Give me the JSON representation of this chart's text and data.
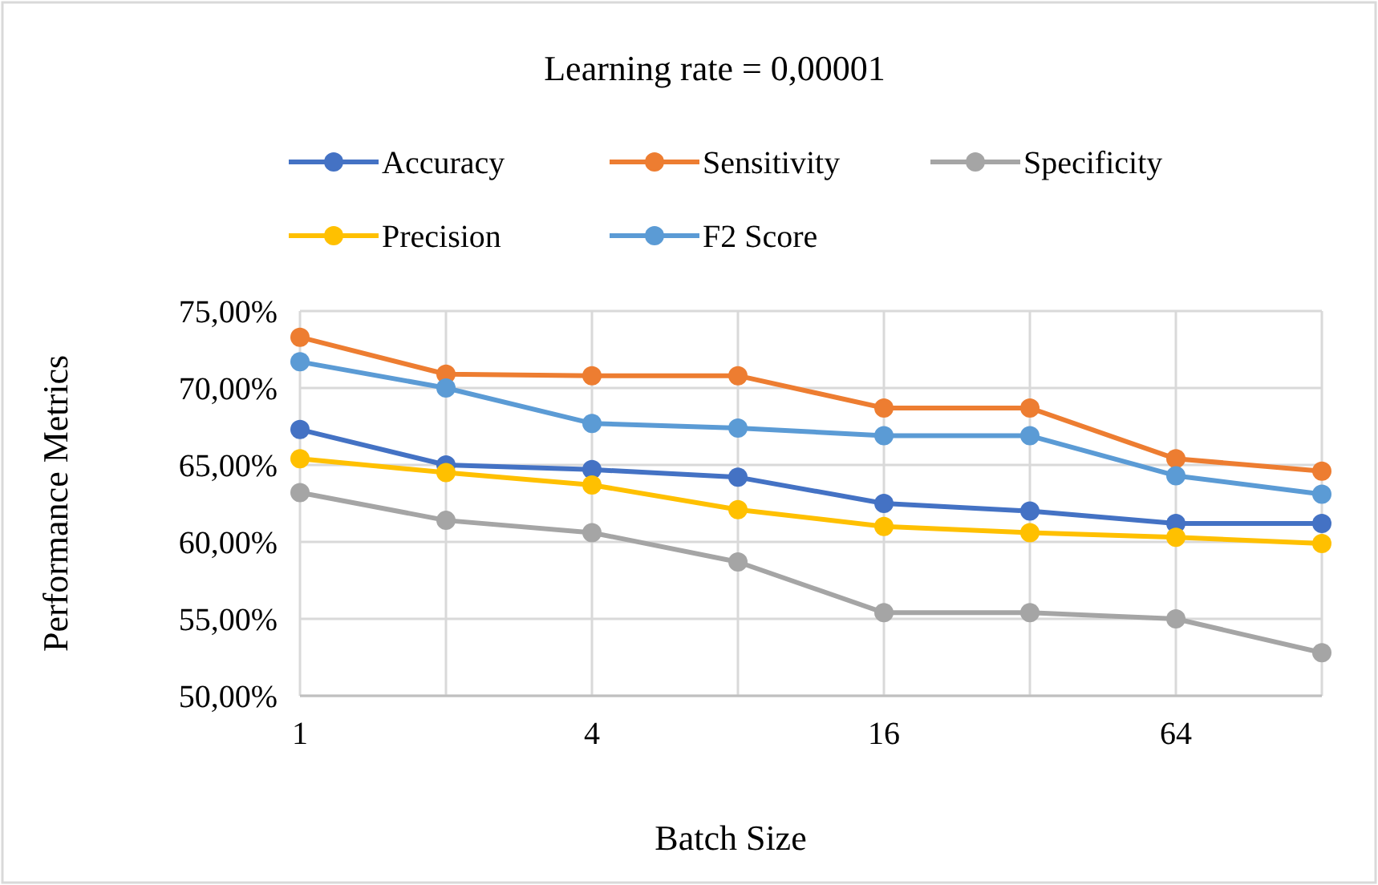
{
  "chart_data": {
    "type": "line",
    "title": "Learning rate = 0,00001",
    "xlabel": "Batch Size",
    "ylabel": "Performance Metrics",
    "categories": [
      "1",
      null,
      "4",
      null,
      "16",
      null,
      "64",
      null
    ],
    "series": [
      {
        "name": "Accuracy",
        "color": "#4472c4",
        "values": [
          67.3,
          65.0,
          64.7,
          64.2,
          62.5,
          62.0,
          61.2,
          61.2
        ]
      },
      {
        "name": "Sensitivity",
        "color": "#ed7d31",
        "values": [
          73.3,
          70.9,
          70.8,
          70.8,
          68.7,
          68.7,
          65.4,
          64.6
        ]
      },
      {
        "name": "Specificity",
        "color": "#a5a5a5",
        "values": [
          63.2,
          61.4,
          60.6,
          58.7,
          55.4,
          55.4,
          55.0,
          52.8
        ]
      },
      {
        "name": "Precision",
        "color": "#ffc000",
        "values": [
          65.4,
          64.5,
          63.7,
          62.1,
          61.0,
          60.6,
          60.3,
          59.9
        ]
      },
      {
        "name": "F2 Score",
        "color": "#5b9bd5",
        "values": [
          71.7,
          70.0,
          67.7,
          67.4,
          66.9,
          66.9,
          64.3,
          63.1
        ]
      }
    ],
    "ylim": [
      50,
      75
    ],
    "yticks": [
      {
        "value": 50,
        "label": "50,00%"
      },
      {
        "value": 55,
        "label": "55,00%"
      },
      {
        "value": 60,
        "label": "60,00%"
      },
      {
        "value": 65,
        "label": "65,00%"
      },
      {
        "value": 70,
        "label": "70,00%"
      },
      {
        "value": 75,
        "label": "75,00%"
      }
    ],
    "grid": true,
    "legend": "top",
    "marker": "circle",
    "line_style": "solid"
  }
}
